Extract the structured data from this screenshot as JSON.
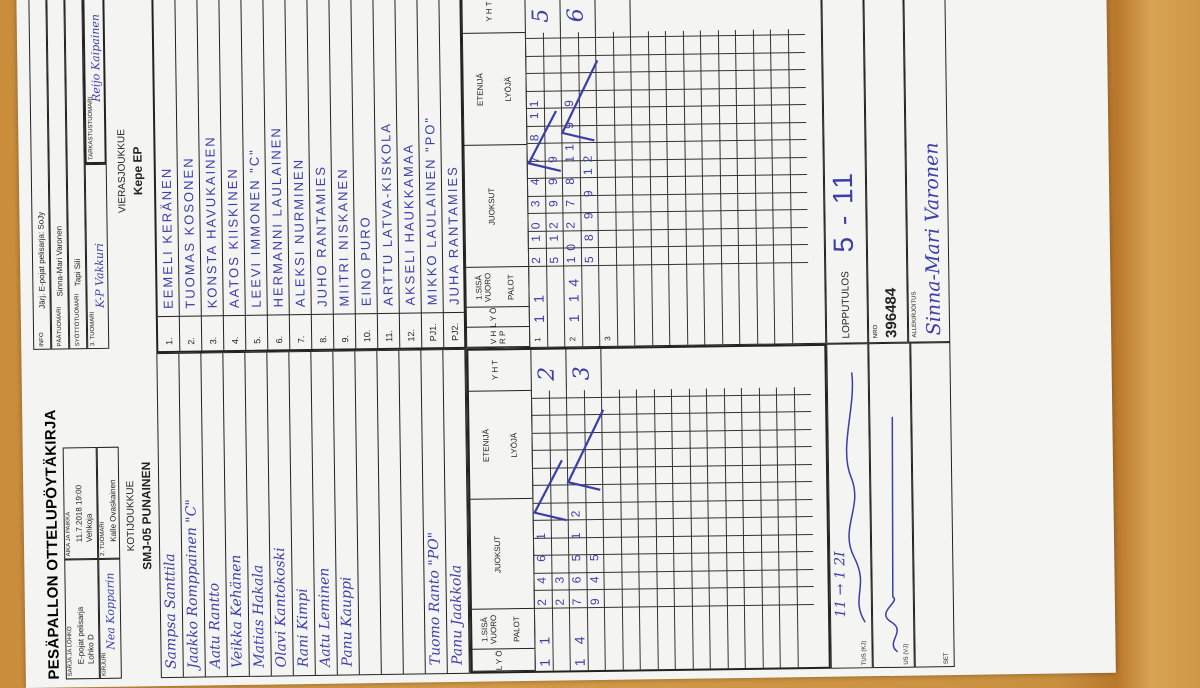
{
  "form": {
    "title": "PESÄPALLON OTTELUPÖYTÄKIRJA",
    "home_header": {
      "series_label": "SARJA JA LOHKO",
      "series_value": "E-pojat pelisarja",
      "group_value": "Lohko D",
      "time_label": "AIKA JA PAIKKA",
      "time_value": "11.7.2018 19:00",
      "place_value": "Vehkoja",
      "scorer_label": "KIRJURI",
      "scorer_value": "Nea Kopparin",
      "umpire2_label": "2. TUOMARI",
      "umpire2_value": "Kalle Ovaskainen"
    },
    "away_header": {
      "info_label": "INFO",
      "info_value": "Järj. E-pojat pelisarja: SoJy",
      "head_umpire_label": "PÄÄTUOMARI",
      "head_umpire_value": "Sinna-Mari Varonen",
      "pitch_umpire_label": "SYÖTTÖTUOMARI",
      "pitch_umpire_value": "Tapi Sili",
      "umpire3_label": "3. TUOMARI",
      "umpire3_value": "K-P Vakkuri",
      "check_umpire_label": "TARKASTUSTUOMARI",
      "check_umpire_value": "Reijo Kaipainen"
    },
    "home_team": {
      "label": "KOTIJOUKKUE",
      "name": "SMJ-05 PUNAINEN",
      "players": [
        "Sampsa Santtila",
        "Jaakko Romppainen \"C\"",
        "Aatu Rantto",
        "Veikka Kehänen",
        "Matias Hakala",
        "Olavi Kantokoski",
        "Rani Kimpi",
        "Aatu Leminen",
        "Panu Kauppi",
        "",
        "",
        "",
        "Tuomo Ranto \"PO\"",
        "Panu Jaakkola"
      ]
    },
    "away_team": {
      "label": "VIERASJOUKKUE",
      "name": "Kepe EP",
      "numbers": [
        "1.",
        "2.",
        "3.",
        "4.",
        "5.",
        "6.",
        "7.",
        "8.",
        "9.",
        "10.",
        "11.",
        "12.",
        "PJ1.",
        "PJ2."
      ],
      "players": [
        "EEMELI KERÄNEN",
        "TUOMAS KOSONEN",
        "KONSTA HAVUKAINEN",
        "AATOS KIISKINEN",
        "LEEVI IMMONEN \"C\"",
        "HERMANNI LAULAINEN",
        "ALEKSI NURMINEN",
        "JUHO RANTAMIES",
        "MIITRI NISKANEN",
        "EINO PURO",
        "ARTTU LATVA-KISKOLA",
        "AKSELI HAUKKAMAA",
        "MIKKO LAULAINEN \"PO\"",
        "JUHA RANTAMIES"
      ]
    },
    "innings_headers": {
      "lyo": "L Y Ö",
      "first_half": "1.SISÄ VUORO",
      "palot": "PALOT",
      "juoksut": "JUOKSUT",
      "etenija": "ETENIJÄ",
      "lyoja": "LYÖJÄ",
      "yht": "Y H T",
      "vhrp": "V H R P"
    },
    "home_innings": [
      {
        "lyo": "1",
        "palot": "1",
        "runs_top": "2 4 6 1",
        "runs_bottom": "2 3",
        "total": "2"
      },
      {
        "lyo": "1",
        "palot": "4",
        "runs_top": "7 6 5 1 2",
        "runs_bottom": "9 4 5",
        "total": "3"
      }
    ],
    "away_innings": [
      {
        "period": "1",
        "lyo": "1",
        "palot": "1",
        "runs_top": "2 10 3 4 7 8 11",
        "runs_bottom": "5 12 9 9 9",
        "total": "5"
      },
      {
        "period": "2",
        "lyo": "1",
        "palot": "1 4",
        "runs_top": "10 2 7 8 11 9 9",
        "runs_bottom": "5 8 9 9 12",
        "total": "6"
      },
      {
        "period": "3",
        "lyo": "",
        "palot": "",
        "runs_top": "",
        "runs_bottom": "",
        "total": ""
      }
    ],
    "home_note": "11 → 1 2I",
    "bottom": {
      "kj_label": "TUS (KJ)",
      "vj_label": "US (VJ)",
      "set_label": "SET",
      "result_label": "LOPPUTULOS",
      "result_value": "5 - 11",
      "nro_label": "NRO",
      "nro_value": "396484",
      "signature_label": "ALLEKIRJOITUS",
      "signature_value": "Sinna-Mari Varonen"
    }
  }
}
